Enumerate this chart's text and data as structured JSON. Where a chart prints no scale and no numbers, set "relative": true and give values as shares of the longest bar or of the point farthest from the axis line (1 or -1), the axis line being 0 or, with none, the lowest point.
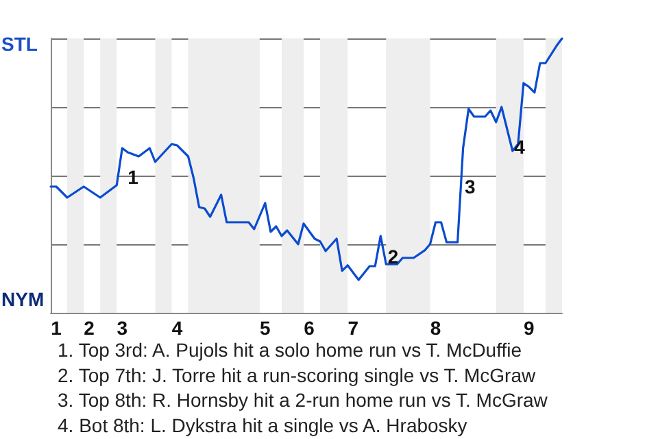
{
  "chart_data": {
    "type": "line",
    "relative": true,
    "categories": [
      null,
      "1",
      null,
      null,
      null,
      null,
      null,
      "2",
      null,
      null,
      null,
      null,
      null,
      "3",
      null,
      null,
      null,
      null,
      null,
      null,
      null,
      null,
      null,
      "4",
      null,
      null,
      null,
      null,
      null,
      null,
      null,
      null,
      null,
      null,
      null,
      null,
      null,
      null,
      null,
      "5",
      null,
      null,
      null,
      null,
      null,
      null,
      null,
      "6",
      null,
      null,
      null,
      null,
      null,
      null,
      null,
      "7",
      null,
      null,
      null,
      null,
      null,
      null,
      null,
      null,
      null,
      null,
      null,
      null,
      null,
      null,
      "8",
      null,
      null,
      null,
      null,
      null,
      null,
      null,
      null,
      null,
      null,
      null,
      null,
      null,
      null,
      null,
      null,
      "9",
      null,
      null,
      null,
      null,
      null,
      null
    ],
    "series": [
      {
        "color": "#0a4bd0",
        "values": [
          0.46,
          0.46,
          null,
          0.42,
          null,
          null,
          0.46,
          null,
          null,
          0.42,
          null,
          null,
          0.465,
          0.6,
          0.585,
          null,
          0.57,
          null,
          0.6,
          0.55,
          null,
          null,
          0.615,
          0.61,
          null,
          0.57,
          0.49,
          0.385,
          0.38,
          0.35,
          null,
          0.43,
          0.33,
          null,
          null,
          null,
          0.33,
          0.305,
          null,
          0.4,
          0.295,
          0.315,
          0.28,
          0.3,
          null,
          0.25,
          0.325,
          null,
          0.27,
          0.26,
          0.225,
          null,
          0.27,
          0.153,
          0.173,
          null,
          0.12,
          null,
          0.17,
          0.17,
          0.28,
          0.177,
          null,
          0.177,
          0.2,
          null,
          0.2,
          null,
          0.227,
          0.25,
          0.33,
          0.33,
          0.257,
          null,
          0.257,
          0.6,
          0.743,
          0.715,
          null,
          0.715,
          0.737,
          0.695,
          0.75,
          null,
          0.59,
          0.615,
          0.837,
          0.823,
          0.803,
          0.91,
          0.91,
          null,
          0.973,
          1
        ]
      }
    ],
    "grid": "y",
    "marker": "none",
    "line_style": "solid",
    "annotations": [
      "STL",
      "NYM",
      "1",
      "2",
      "3",
      "4",
      "1. Top 3rd: A. Pujols hit a solo home run vs T. McDuffie",
      "2. Top 7th: J. Torre hit a run-scoring single vs T. McGraw",
      "3. Top 8th: R. Hornsby hit a 2-run home run vs T. McGraw",
      "4. Bot 8th: L. Dykstra hit a single vs A. Hrabosky"
    ]
  }
}
